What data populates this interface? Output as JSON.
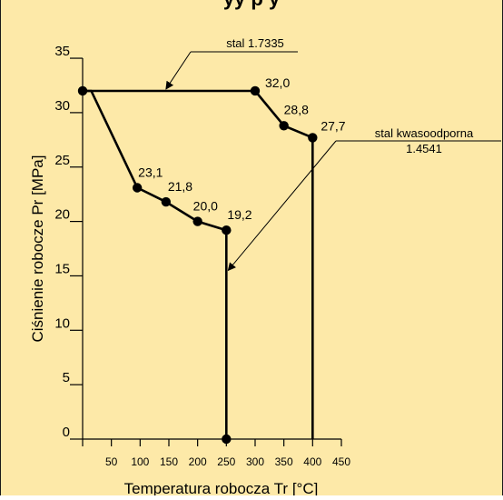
{
  "header": {
    "cut_title": "yy p y"
  },
  "colors": {
    "background": "#fde9a8",
    "line": "#000000",
    "frame": "#1a1a1a"
  },
  "chart_data": {
    "type": "line",
    "xlabel": "Temperatura robocza Tr [°C]",
    "ylabel": "Ciśnienie robocze Pr [MPa]",
    "xlim": [
      0,
      450
    ],
    "ylim": [
      0,
      35
    ],
    "x_ticks": [
      50,
      100,
      150,
      200,
      250,
      300,
      350,
      400,
      450
    ],
    "y_ticks": [
      0,
      5,
      10,
      15,
      20,
      25,
      30,
      35
    ],
    "series": [
      {
        "name": "stal 1.7335",
        "points": [
          [
            0,
            32.0
          ],
          [
            300,
            32.0
          ],
          [
            350,
            28.8
          ],
          [
            400,
            27.7
          ],
          [
            400,
            0
          ]
        ],
        "labels": [
          {
            "x": 300,
            "y": 32.0,
            "text": "32,0"
          },
          {
            "x": 350,
            "y": 28.8,
            "text": "28,8"
          },
          {
            "x": 400,
            "y": 27.7,
            "text": "27,7"
          }
        ]
      },
      {
        "name": "stal kwasoodporna 1.4541",
        "points": [
          [
            0,
            32.0
          ],
          [
            15,
            32.0
          ],
          [
            95,
            23.1
          ],
          [
            145,
            21.8
          ],
          [
            200,
            20.0
          ],
          [
            250,
            19.2
          ],
          [
            250,
            0
          ]
        ],
        "labels": [
          {
            "x": 95,
            "y": 23.1,
            "text": "23,1"
          },
          {
            "x": 145,
            "y": 21.8,
            "text": "21,8"
          },
          {
            "x": 200,
            "y": 20.0,
            "text": "20,0"
          },
          {
            "x": 250,
            "y": 19.2,
            "text": "19,2"
          }
        ]
      }
    ],
    "markers": [
      [
        0,
        32.0
      ],
      [
        300,
        32.0
      ],
      [
        350,
        28.8
      ],
      [
        400,
        27.7
      ],
      [
        95,
        23.1
      ],
      [
        145,
        21.8
      ],
      [
        200,
        20.0
      ],
      [
        250,
        19.2
      ],
      [
        250,
        0
      ]
    ],
    "annotations": [
      {
        "lines": [
          "stal 1.7335"
        ]
      },
      {
        "lines": [
          "stal kwasoodporna",
          "1.4541"
        ]
      }
    ],
    "grid": false,
    "legend": "none"
  }
}
